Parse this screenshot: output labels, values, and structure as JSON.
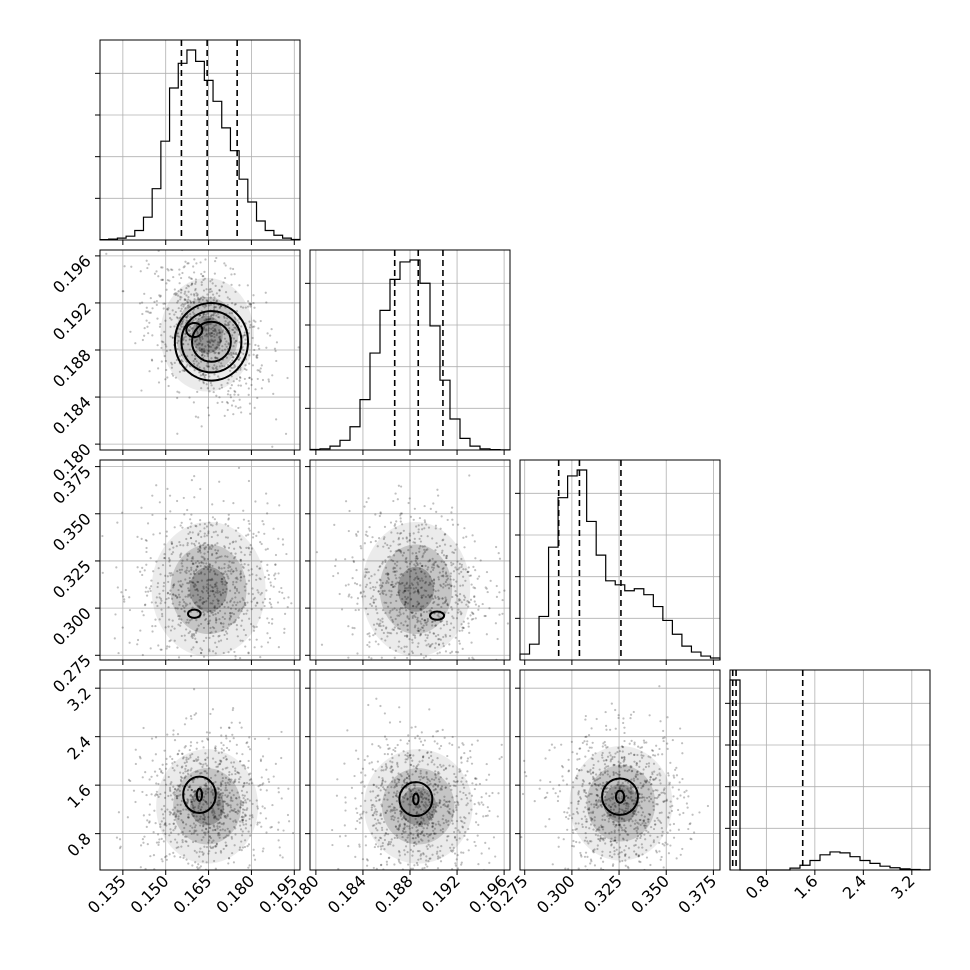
{
  "chart_data": {
    "type": "corner",
    "parameters": [
      {
        "range": [
          0.127,
          0.197
        ],
        "ticks": [
          "0.135",
          "0.150",
          "0.165",
          "0.180",
          "0.195"
        ],
        "quantiles": [
          0.1555,
          0.1645,
          0.175
        ],
        "hist": [
          0.2,
          0.5,
          1,
          2,
          5,
          12,
          27,
          52,
          80,
          93,
          100,
          94,
          84,
          73,
          59,
          47,
          32,
          20,
          10,
          5,
          2.5,
          1,
          0.3
        ],
        "peak_label": null
      },
      {
        "range": [
          0.1795,
          0.1965
        ],
        "ticks": [
          "0.180",
          "0.184",
          "0.188",
          "0.192",
          "0.196"
        ],
        "quantiles": [
          0.1867,
          0.1887,
          0.1908
        ],
        "hist": [
          0.3,
          0.6,
          2,
          5,
          12,
          26,
          50,
          72,
          88,
          97,
          98,
          86,
          64,
          36,
          16,
          6,
          2,
          0.6,
          0.2,
          0.1
        ],
        "peak_label": null
      },
      {
        "range": [
          0.2725,
          0.3785
        ],
        "ticks": [
          "0.275",
          "0.300",
          "0.325",
          "0.350",
          "0.375"
        ],
        "quantiles": [
          0.293,
          0.304,
          0.326
        ],
        "hist": [
          3,
          8,
          22,
          57,
          82,
          93,
          96,
          70,
          53,
          40,
          38,
          35,
          36,
          33,
          27,
          20,
          13,
          7,
          4,
          2,
          1
        ],
        "peak_label": null
      },
      {
        "range": [
          0.2,
          3.5
        ],
        "ticks": [
          "0.8",
          "1.6",
          "2.4",
          "3.2"
        ],
        "quantiles": [
          0.245,
          0.3,
          1.4
        ],
        "hist": [
          100,
          0,
          0,
          0,
          0,
          0,
          1,
          2.5,
          5,
          8,
          9.5,
          9,
          7,
          5,
          3.5,
          2,
          1.2,
          0.6,
          0.3,
          0.1
        ],
        "peak_label": null
      }
    ],
    "pairs": [
      {
        "row": 1,
        "col": 0,
        "cx": 0.1645,
        "cy": 0.1893,
        "sx": 0.0078,
        "sy": 0.0023,
        "rho": -0.35,
        "contours": [
          [
            0.16,
            0.1897,
            0.0028,
            0.0006
          ],
          [
            0.166,
            0.1887,
            0.0068,
            0.0017
          ],
          [
            0.166,
            0.1887,
            0.0105,
            0.0026
          ],
          [
            0.166,
            0.1887,
            0.0128,
            0.0033
          ]
        ]
      },
      {
        "row": 2,
        "col": 0,
        "cx": 0.165,
        "cy": 0.31,
        "sx": 0.0095,
        "sy": 0.017,
        "rho": 0.0,
        "contours": [
          [
            0.16,
            0.297,
            0.0022,
            0.0022
          ]
        ]
      },
      {
        "row": 2,
        "col": 1,
        "cx": 0.1885,
        "cy": 0.31,
        "sx": 0.0022,
        "sy": 0.017,
        "rho": 0.0,
        "contours": [
          [
            0.1903,
            0.296,
            0.0006,
            0.0022
          ]
        ]
      },
      {
        "row": 3,
        "col": 0,
        "cx": 0.1645,
        "cy": 1.25,
        "sx": 0.0085,
        "sy": 0.45,
        "rho": 0.0,
        "contours": [
          [
            0.1618,
            1.44,
            0.0009,
            0.1
          ],
          [
            0.1618,
            1.44,
            0.0057,
            0.3
          ]
        ]
      },
      {
        "row": 3,
        "col": 1,
        "cx": 0.1887,
        "cy": 1.25,
        "sx": 0.0022,
        "sy": 0.45,
        "rho": 0.0,
        "contours": [
          [
            0.1885,
            1.37,
            0.00023,
            0.09
          ],
          [
            0.1885,
            1.37,
            0.0014,
            0.28
          ]
        ]
      },
      {
        "row": 3,
        "col": 2,
        "cx": 0.326,
        "cy": 1.3,
        "sx": 0.013,
        "sy": 0.45,
        "rho": 0.0,
        "contours": [
          [
            0.3255,
            1.41,
            0.0022,
            0.1
          ],
          [
            0.3255,
            1.41,
            0.0095,
            0.3
          ]
        ]
      }
    ],
    "grid": true,
    "xlabel": "",
    "ylabel": "",
    "title": ""
  }
}
